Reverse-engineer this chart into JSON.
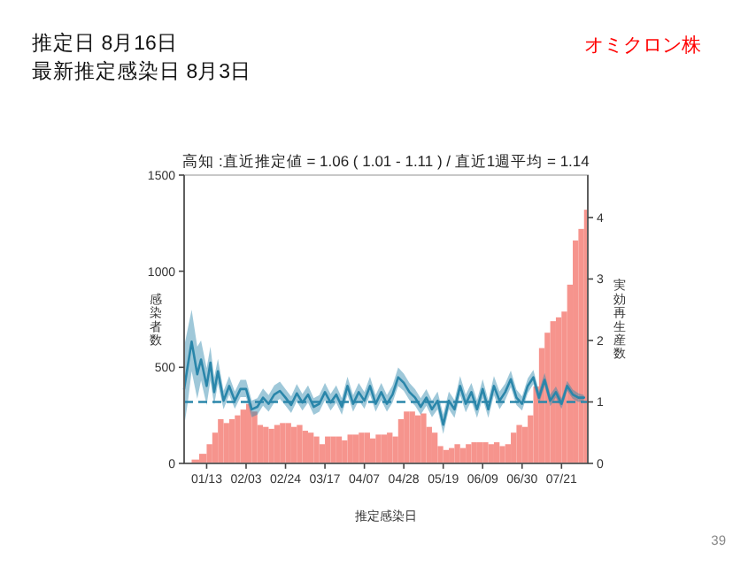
{
  "chart_data": {
    "type": "bar",
    "title": "高知 :直近推定値 = 1.06 ( 1.01 - 1.11 ) / 直近1週平均 = 1.14",
    "xlabel": "推定感染日",
    "ylabel": "感染者数",
    "y2label": "実効再生産数",
    "annotations": [
      "推定日  8月16日",
      "最新推定感染日  8月3日",
      "オミクロン株",
      "39"
    ],
    "xlim": [
      "--01-01",
      "--08-04"
    ],
    "xticks": [
      {
        "value": "--01-13",
        "label": "01/13"
      },
      {
        "value": "--02-03",
        "label": "02/03"
      },
      {
        "value": "--02-24",
        "label": "02/24"
      },
      {
        "value": "--03-17",
        "label": "03/17"
      },
      {
        "value": "--04-07",
        "label": "04/07"
      },
      {
        "value": "--04-28",
        "label": "04/28"
      },
      {
        "value": "--05-19",
        "label": "05/19"
      },
      {
        "value": "--06-09",
        "label": "06/09"
      },
      {
        "value": "--06-30",
        "label": "06/30"
      },
      {
        "value": "--07-21",
        "label": "07/21"
      }
    ],
    "ylim": [
      0,
      1500
    ],
    "yticks": [
      0,
      500,
      1000,
      1500
    ],
    "y2lim": [
      0,
      4.69
    ],
    "y2ticks": [
      0,
      1,
      2,
      3,
      4
    ],
    "ref_lines": [
      {
        "axis": "y2",
        "value": 1,
        "color": "#2a86aa",
        "line_style": "dashed"
      }
    ],
    "series": [
      {
        "axis": "y",
        "color": "#f6948d",
        "x": [
          "--01-01",
          "--01-05",
          "--01-09",
          "--01-13",
          "--01-16",
          "--01-19",
          "--01-22",
          "--01-25",
          "--01-28",
          "--01-31",
          "--02-03",
          "--02-06",
          "--02-09",
          "--02-12",
          "--02-15",
          "--02-18",
          "--02-21",
          "--02-24",
          "--02-27",
          "--03-02",
          "--03-05",
          "--03-08",
          "--03-11",
          "--03-14",
          "--03-17",
          "--03-20",
          "--03-23",
          "--03-26",
          "--03-29",
          "--04-01",
          "--04-04",
          "--04-07",
          "--04-10",
          "--04-13",
          "--04-16",
          "--04-19",
          "--04-22",
          "--04-25",
          "--04-28",
          "--05-01",
          "--05-04",
          "--05-07",
          "--05-10",
          "--05-13",
          "--05-16",
          "--05-19",
          "--05-22",
          "--05-25",
          "--05-28",
          "--05-31",
          "--06-03",
          "--06-06",
          "--06-09",
          "--06-12",
          "--06-15",
          "--06-18",
          "--06-21",
          "--06-24",
          "--06-27",
          "--06-30",
          "--07-03",
          "--07-06",
          "--07-09",
          "--07-12",
          "--07-15",
          "--07-18",
          "--07-21",
          "--07-24",
          "--07-27",
          "--07-30",
          "--08-02"
        ],
        "values": [
          0,
          20,
          50,
          100,
          160,
          230,
          210,
          230,
          250,
          280,
          310,
          270,
          200,
          190,
          180,
          200,
          210,
          210,
          190,
          200,
          170,
          160,
          140,
          100,
          140,
          140,
          140,
          120,
          150,
          150,
          160,
          160,
          130,
          150,
          150,
          160,
          140,
          230,
          270,
          270,
          250,
          260,
          190,
          160,
          90,
          70,
          80,
          100,
          80,
          100,
          110,
          110,
          110,
          100,
          110,
          90,
          100,
          160,
          200,
          190,
          250,
          400,
          600,
          680,
          740,
          760,
          790,
          930,
          1160,
          1220,
          1320
        ]
      },
      {
        "type": "line",
        "axis": "y2",
        "color": "#2a86aa",
        "x": [
          "--01-01",
          "--01-03",
          "--01-05",
          "--01-08",
          "--01-10",
          "--01-13",
          "--01-15",
          "--01-17",
          "--01-19",
          "--01-22",
          "--01-25",
          "--01-28",
          "--01-31",
          "--02-03",
          "--02-06",
          "--02-09",
          "--02-12",
          "--02-15",
          "--02-18",
          "--02-21",
          "--02-24",
          "--02-27",
          "--03-02",
          "--03-05",
          "--03-08",
          "--03-11",
          "--03-14",
          "--03-17",
          "--03-20",
          "--03-23",
          "--03-26",
          "--03-29",
          "--04-01",
          "--04-04",
          "--04-07",
          "--04-10",
          "--04-13",
          "--04-16",
          "--04-19",
          "--04-22",
          "--04-25",
          "--04-28",
          "--05-01",
          "--05-04",
          "--05-07",
          "--05-10",
          "--05-13",
          "--05-16",
          "--05-19",
          "--05-22",
          "--05-25",
          "--05-28",
          "--05-31",
          "--06-03",
          "--06-06",
          "--06-09",
          "--06-12",
          "--06-15",
          "--06-18",
          "--06-21",
          "--06-24",
          "--06-27",
          "--06-30",
          "--07-03",
          "--07-06",
          "--07-09",
          "--07-12",
          "--07-15",
          "--07-18",
          "--07-21",
          "--07-24",
          "--07-27",
          "--07-30",
          "--08-02"
        ],
        "values": [
          1.21,
          1.6,
          1.98,
          1.45,
          1.69,
          1.26,
          1.64,
          1.16,
          1.5,
          1.02,
          1.26,
          1.02,
          1.21,
          1.21,
          0.88,
          0.92,
          1.07,
          0.97,
          1.12,
          1.18,
          1.07,
          0.95,
          1.14,
          0.99,
          1.12,
          0.92,
          0.97,
          1.16,
          0.99,
          1.12,
          0.92,
          1.26,
          0.97,
          1.16,
          1.02,
          1.26,
          0.97,
          1.16,
          0.97,
          1.12,
          1.4,
          1.31,
          1.16,
          1.07,
          0.92,
          1.07,
          0.88,
          1.02,
          0.63,
          1.02,
          0.88,
          1.26,
          0.97,
          1.16,
          0.88,
          1.21,
          0.88,
          1.26,
          1.02,
          1.16,
          1.37,
          1.07,
          0.97,
          1.26,
          1.4,
          1.07,
          1.36,
          1.02,
          1.16,
          0.97,
          1.26,
          1.12,
          1.07,
          1.07
        ],
        "lower": [
          0.6,
          1.0,
          1.5,
          1.05,
          1.35,
          0.95,
          1.35,
          0.95,
          1.3,
          0.88,
          1.12,
          0.89,
          1.08,
          1.08,
          0.75,
          0.79,
          0.94,
          0.84,
          0.99,
          1.05,
          0.94,
          0.82,
          1.01,
          0.86,
          0.99,
          0.79,
          0.84,
          1.03,
          0.86,
          0.99,
          0.79,
          1.12,
          0.84,
          1.03,
          0.89,
          1.12,
          0.84,
          1.03,
          0.84,
          0.99,
          1.26,
          1.18,
          1.03,
          0.94,
          0.79,
          0.94,
          0.75,
          0.88,
          0.48,
          0.88,
          0.74,
          1.11,
          0.83,
          1.02,
          0.74,
          1.06,
          0.74,
          1.11,
          0.88,
          1.03,
          1.24,
          0.95,
          0.86,
          1.14,
          1.29,
          0.97,
          1.26,
          0.93,
          1.07,
          0.89,
          1.18,
          1.05,
          1.0,
          1.01
        ],
        "upper": [
          1.9,
          2.2,
          2.5,
          1.9,
          2.0,
          1.55,
          1.9,
          1.4,
          1.7,
          1.18,
          1.42,
          1.17,
          1.36,
          1.36,
          1.02,
          1.06,
          1.22,
          1.11,
          1.27,
          1.33,
          1.21,
          1.09,
          1.29,
          1.13,
          1.27,
          1.06,
          1.11,
          1.31,
          1.13,
          1.27,
          1.06,
          1.41,
          1.11,
          1.31,
          1.16,
          1.41,
          1.11,
          1.31,
          1.11,
          1.27,
          1.56,
          1.46,
          1.31,
          1.21,
          1.06,
          1.21,
          1.02,
          1.17,
          0.8,
          1.17,
          1.03,
          1.42,
          1.12,
          1.31,
          1.03,
          1.37,
          1.03,
          1.42,
          1.17,
          1.3,
          1.51,
          1.2,
          1.09,
          1.38,
          1.52,
          1.18,
          1.47,
          1.12,
          1.25,
          1.06,
          1.34,
          1.2,
          1.14,
          1.11
        ]
      }
    ]
  }
}
